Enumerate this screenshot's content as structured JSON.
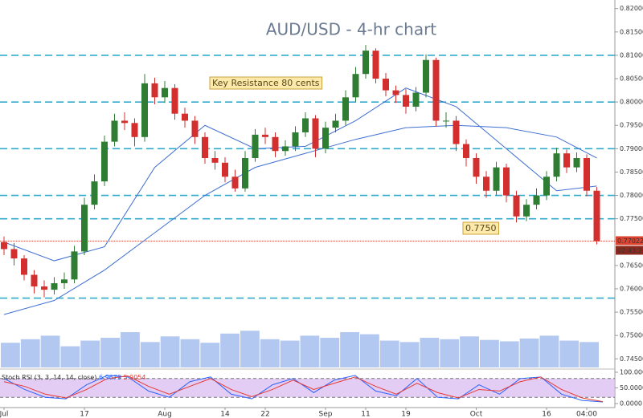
{
  "chart_data": {
    "type": "candlestick",
    "title": "AUD/USD - 4-hr chart",
    "up_color": "#2e7d32",
    "down_color": "#d32f2f",
    "ylim": [
      0.7435,
      0.8215
    ],
    "yticks": [
      {
        "value": 0.745,
        "label": "0.74500"
      },
      {
        "value": 0.75,
        "label": "0.75000"
      },
      {
        "value": 0.755,
        "label": "0.75500"
      },
      {
        "value": 0.76,
        "label": "0.76000"
      },
      {
        "value": 0.765,
        "label": "0.76500"
      },
      {
        "value": 0.775,
        "label": "0.77500"
      },
      {
        "value": 0.78,
        "label": "0.78000"
      },
      {
        "value": 0.785,
        "label": "0.78500"
      },
      {
        "value": 0.79,
        "label": "0.79000"
      },
      {
        "value": 0.795,
        "label": "0.79500"
      },
      {
        "value": 0.8,
        "label": "0.80000"
      },
      {
        "value": 0.805,
        "label": "0.80500"
      },
      {
        "value": 0.81,
        "label": "0.81000"
      },
      {
        "value": 0.815,
        "label": "0.81500"
      },
      {
        "value": 0.82,
        "label": "0.82000"
      }
    ],
    "x_labels": [
      {
        "index": 0,
        "label": "Jul"
      },
      {
        "index": 8,
        "label": "17"
      },
      {
        "index": 16,
        "label": "Aug"
      },
      {
        "index": 22,
        "label": "14"
      },
      {
        "index": 26,
        "label": "22"
      },
      {
        "index": 32,
        "label": "Sep"
      },
      {
        "index": 36,
        "label": "11"
      },
      {
        "index": 40,
        "label": "19"
      },
      {
        "index": 47,
        "label": "Oct"
      },
      {
        "index": 54,
        "label": "16"
      },
      {
        "index": 58,
        "label": "04:00"
      }
    ],
    "candles": [
      [
        0.77,
        0.7712,
        0.7672,
        0.7685
      ],
      [
        0.7685,
        0.7698,
        0.765,
        0.7665
      ],
      [
        0.7665,
        0.7672,
        0.7618,
        0.763
      ],
      [
        0.763,
        0.764,
        0.759,
        0.7605
      ],
      [
        0.7605,
        0.7618,
        0.7582,
        0.7598
      ],
      [
        0.7598,
        0.7625,
        0.7588,
        0.7612
      ],
      [
        0.7612,
        0.7635,
        0.76,
        0.762
      ],
      [
        0.762,
        0.7692,
        0.7612,
        0.768
      ],
      [
        0.768,
        0.7795,
        0.7672,
        0.778
      ],
      [
        0.778,
        0.7845,
        0.777,
        0.783
      ],
      [
        0.783,
        0.7928,
        0.782,
        0.7915
      ],
      [
        0.7915,
        0.7975,
        0.7905,
        0.796
      ],
      [
        0.796,
        0.7978,
        0.794,
        0.7955
      ],
      [
        0.7955,
        0.7965,
        0.7905,
        0.7925
      ],
      [
        0.7925,
        0.806,
        0.7915,
        0.804
      ],
      [
        0.804,
        0.8052,
        0.7995,
        0.801
      ],
      [
        0.801,
        0.8045,
        0.7998,
        0.803
      ],
      [
        0.803,
        0.8038,
        0.7962,
        0.7975
      ],
      [
        0.7975,
        0.7988,
        0.7945,
        0.796
      ],
      [
        0.796,
        0.797,
        0.791,
        0.7925
      ],
      [
        0.7925,
        0.7935,
        0.7868,
        0.788
      ],
      [
        0.788,
        0.7895,
        0.7855,
        0.787
      ],
      [
        0.787,
        0.7882,
        0.7828,
        0.784
      ],
      [
        0.784,
        0.7855,
        0.7808,
        0.7815
      ],
      [
        0.7815,
        0.7895,
        0.7808,
        0.788
      ],
      [
        0.788,
        0.7942,
        0.7872,
        0.793
      ],
      [
        0.793,
        0.7945,
        0.791,
        0.7925
      ],
      [
        0.7925,
        0.7935,
        0.7882,
        0.7895
      ],
      [
        0.7895,
        0.7918,
        0.7885,
        0.7905
      ],
      [
        0.7905,
        0.7948,
        0.7895,
        0.7935
      ],
      [
        0.7935,
        0.7978,
        0.7925,
        0.7965
      ],
      [
        0.7965,
        0.7972,
        0.7882,
        0.79
      ],
      [
        0.79,
        0.7958,
        0.789,
        0.7945
      ],
      [
        0.7945,
        0.7975,
        0.7935,
        0.796
      ],
      [
        0.796,
        0.8025,
        0.795,
        0.801
      ],
      [
        0.801,
        0.8075,
        0.8,
        0.806
      ],
      [
        0.806,
        0.8122,
        0.805,
        0.811
      ],
      [
        0.811,
        0.8115,
        0.804,
        0.805
      ],
      [
        0.805,
        0.8062,
        0.8012,
        0.8025
      ],
      [
        0.8025,
        0.8035,
        0.7998,
        0.8015
      ],
      [
        0.8015,
        0.8028,
        0.7975,
        0.799
      ],
      [
        0.799,
        0.8032,
        0.798,
        0.802
      ],
      [
        0.802,
        0.8102,
        0.801,
        0.809
      ],
      [
        0.809,
        0.8095,
        0.7948,
        0.796
      ],
      [
        0.796,
        0.7978,
        0.7945,
        0.796
      ],
      [
        0.796,
        0.797,
        0.7895,
        0.791
      ],
      [
        0.791,
        0.792,
        0.7862,
        0.788
      ],
      [
        0.788,
        0.789,
        0.7825,
        0.784
      ],
      [
        0.784,
        0.7852,
        0.7795,
        0.781
      ],
      [
        0.781,
        0.7872,
        0.78,
        0.786
      ],
      [
        0.786,
        0.7868,
        0.7785,
        0.78
      ],
      [
        0.78,
        0.781,
        0.7742,
        0.7755
      ],
      [
        0.7755,
        0.7792,
        0.7745,
        0.778
      ],
      [
        0.778,
        0.7815,
        0.777,
        0.78
      ],
      [
        0.78,
        0.7852,
        0.779,
        0.784
      ],
      [
        0.784,
        0.7902,
        0.783,
        0.789
      ],
      [
        0.789,
        0.7898,
        0.7848,
        0.786
      ],
      [
        0.786,
        0.7892,
        0.785,
        0.788
      ],
      [
        0.788,
        0.7888,
        0.7798,
        0.781
      ],
      [
        0.781,
        0.7818,
        0.7695,
        0.7702
      ]
    ],
    "moving_averages": [
      {
        "color": "#3f6fd1",
        "x": [
          0,
          5,
          10,
          15,
          20,
          25,
          30,
          35,
          40,
          45,
          50,
          55,
          59
        ],
        "values": [
          0.77,
          0.766,
          0.769,
          0.786,
          0.795,
          0.79,
          0.7905,
          0.796,
          0.803,
          0.799,
          0.79,
          0.781,
          0.782
        ]
      },
      {
        "color": "#3f6fd1",
        "x": [
          0,
          5,
          10,
          15,
          20,
          25,
          30,
          35,
          40,
          45,
          50,
          55,
          59
        ],
        "values": [
          0.7545,
          0.7575,
          0.764,
          0.772,
          0.78,
          0.786,
          0.789,
          0.792,
          0.7945,
          0.795,
          0.7945,
          0.7925,
          0.788
        ]
      }
    ],
    "levels": {
      "color": "#35a9c9",
      "values": [
        0.81,
        0.8,
        0.79,
        0.78,
        0.775,
        0.758
      ]
    },
    "current_price": {
      "value": 0.77022,
      "label": "0.77022",
      "countdown": "02:43:26",
      "color": "#d9432f"
    },
    "annotations": [
      {
        "text": "Key Resistance 80 cents"
      },
      {
        "text": "0.7750"
      }
    ],
    "volume": {
      "color": "#7ea4e6",
      "values": [
        35,
        40,
        45,
        30,
        38,
        42,
        50,
        36,
        44,
        40,
        35,
        48,
        52,
        40,
        38,
        45,
        42,
        50,
        47,
        38,
        36,
        42,
        40,
        44,
        39,
        37,
        41,
        45,
        38,
        36
      ]
    },
    "stoch_rsi": {
      "label": "Stoch RSI (3, 3, 14, 14, close)",
      "ylim": [
        0,
        100
      ],
      "yticks": [
        {
          "value": 0,
          "label": "0.0000"
        },
        {
          "value": 50,
          "label": "50.0000"
        },
        {
          "value": 100,
          "label": "100.0000"
        }
      ],
      "band": [
        20,
        80
      ],
      "series": [
        {
          "color": "#2962ff",
          "last": 6.9679,
          "values": [
            80,
            45,
            20,
            15,
            60,
            90,
            85,
            40,
            20,
            70,
            85,
            30,
            15,
            60,
            80,
            35,
            75,
            90,
            40,
            25,
            80,
            20,
            15,
            60,
            30,
            80,
            85,
            30,
            10,
            5
          ]
        },
        {
          "color": "#e53935",
          "last": 5.9054,
          "values": [
            70,
            55,
            30,
            18,
            45,
            80,
            88,
            55,
            30,
            55,
            80,
            45,
            22,
            45,
            75,
            45,
            65,
            85,
            55,
            30,
            65,
            35,
            18,
            45,
            40,
            70,
            85,
            45,
            18,
            6
          ]
        }
      ]
    }
  }
}
